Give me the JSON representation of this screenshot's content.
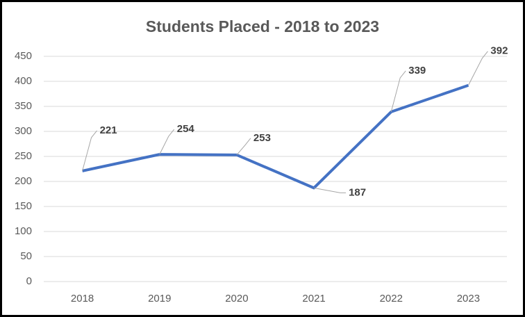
{
  "chart_data": {
    "type": "line",
    "title": "Students Placed - 2018 to 2023",
    "categories": [
      "2018",
      "2019",
      "2020",
      "2021",
      "2022",
      "2023"
    ],
    "values": [
      221,
      254,
      253,
      187,
      339,
      392
    ],
    "color": "#4472c4",
    "ylim": [
      0,
      450
    ],
    "yticks": [
      0,
      50,
      100,
      150,
      200,
      250,
      300,
      350,
      400,
      450
    ],
    "grid": true
  }
}
